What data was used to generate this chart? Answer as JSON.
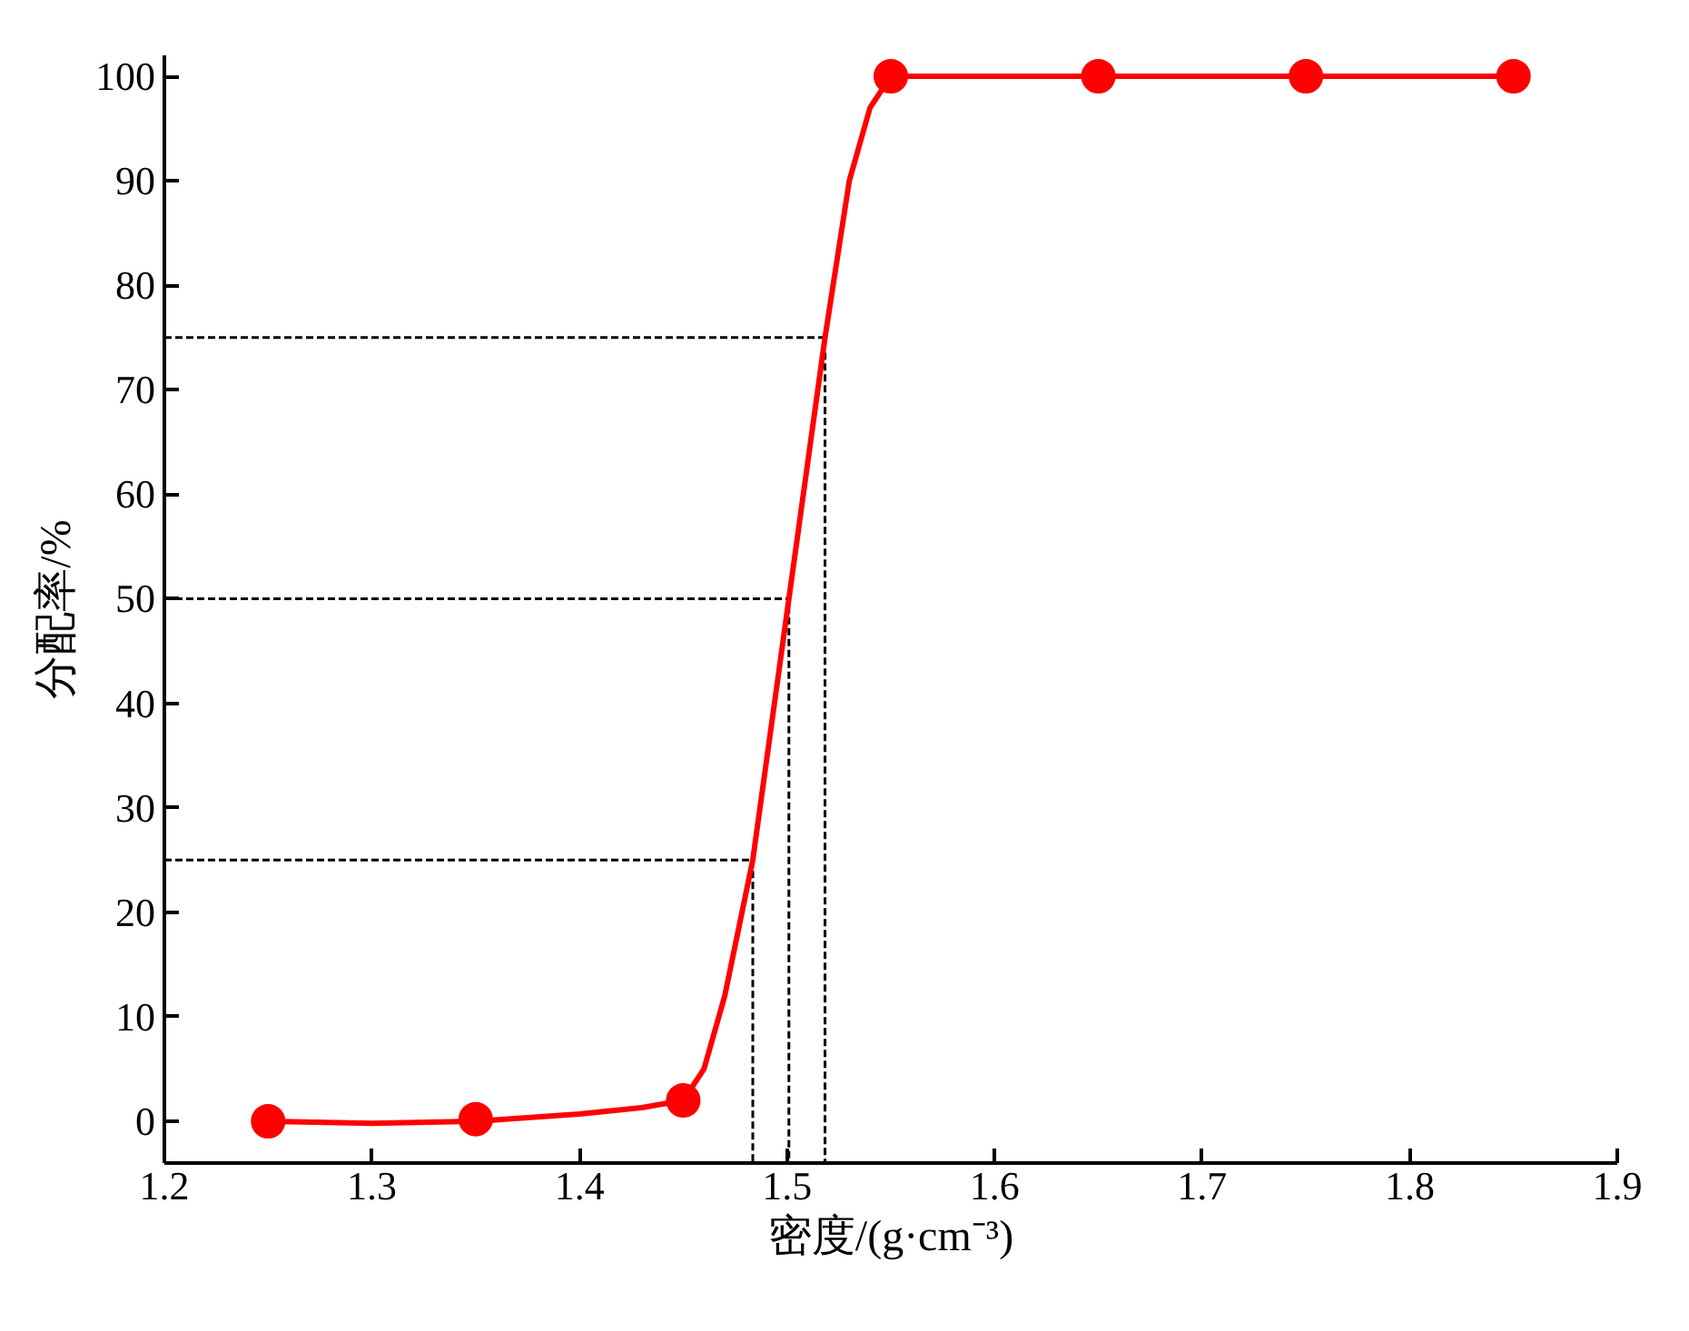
{
  "chart_data": {
    "type": "scatter",
    "xlabel": "密度/(g·cm⁻³)",
    "ylabel": "分配率/%",
    "xlim": [
      1.2,
      1.9
    ],
    "ylim": [
      -4,
      102
    ],
    "xticks": [
      1.2,
      1.3,
      1.4,
      1.5,
      1.6,
      1.7,
      1.8,
      1.9
    ],
    "yticks": [
      0,
      10,
      20,
      30,
      40,
      50,
      60,
      70,
      80,
      90,
      100
    ],
    "grid": false,
    "series": [
      {
        "type": "line",
        "color": "#000000",
        "line_style": "dashed",
        "marker": "none",
        "x": [
          1.2,
          1.4835,
          1.4835
        ],
        "values": [
          25,
          25,
          -4
        ]
      },
      {
        "type": "line",
        "color": "#000000",
        "line_style": "dashed",
        "marker": "none",
        "x": [
          1.2,
          1.5009,
          1.5009
        ],
        "values": [
          50,
          50,
          -4
        ]
      },
      {
        "type": "line",
        "color": "#000000",
        "line_style": "dashed",
        "marker": "none",
        "x": [
          1.2,
          1.5183,
          1.5183
        ],
        "values": [
          75,
          75,
          -4
        ]
      },
      {
        "type": "line",
        "color": "#ff0000",
        "line_style": "solid",
        "marker": "none",
        "x": [
          1.25,
          1.3,
          1.35,
          1.4,
          1.43,
          1.45,
          1.46,
          1.47,
          1.4835,
          1.5009,
          1.5183,
          1.53,
          1.54,
          1.55,
          1.65,
          1.75,
          1.85
        ],
        "values": [
          0,
          -0.2,
          0,
          0.7,
          1.3,
          2,
          5,
          12,
          25,
          50,
          75,
          90,
          97,
          100,
          100,
          100,
          100
        ]
      },
      {
        "color": "#ff0000",
        "marker": "circle",
        "x": [
          1.25,
          1.35,
          1.45,
          1.55,
          1.65,
          1.75,
          1.85
        ],
        "values": [
          0,
          0.2,
          2,
          100,
          100,
          100,
          100
        ]
      }
    ]
  }
}
